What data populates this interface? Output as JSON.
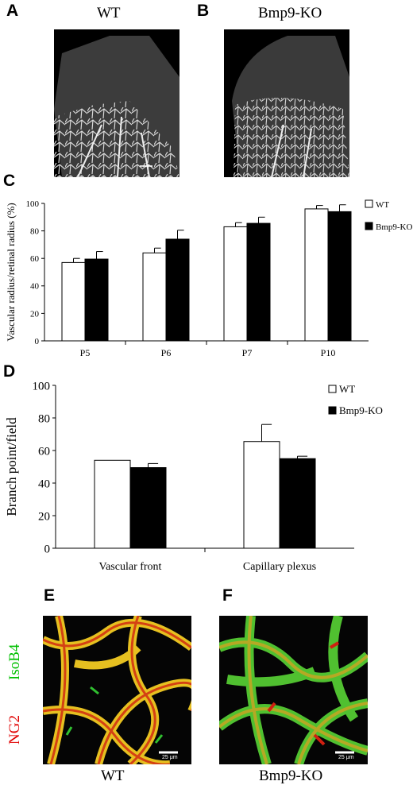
{
  "panels": {
    "A": {
      "label": "A",
      "caption": "WT"
    },
    "B": {
      "label": "B",
      "caption": "Bmp9-KO"
    },
    "C": {
      "label": "C"
    },
    "D": {
      "label": "D"
    },
    "E": {
      "label": "E",
      "caption": "WT",
      "scale_bar": "25 μm"
    },
    "F": {
      "label": "F",
      "caption": "Bmp9-KO",
      "scale_bar": "25 μm"
    }
  },
  "stain_labels": {
    "green": "IsoB4",
    "red": "NG2"
  },
  "colors": {
    "wt": "#ffffff",
    "ko": "#000000",
    "green": "#00c000",
    "red": "#e00000"
  },
  "chart_data": [
    {
      "type": "bar",
      "title": "",
      "xlabel": "",
      "ylabel": "Vascular radius/retinal radius (%)",
      "ylim": [
        0,
        100
      ],
      "yticks": [
        0,
        20,
        40,
        60,
        80,
        100
      ],
      "categories": [
        "P5",
        "P6",
        "P7",
        "P10"
      ],
      "legend_position": "top-right",
      "series": [
        {
          "name": "WT",
          "values": [
            57,
            64,
            83,
            96
          ],
          "errors": [
            3,
            3.5,
            3,
            2.5
          ]
        },
        {
          "name": "Bmp9-KO",
          "values": [
            59.5,
            74,
            85.5,
            94
          ],
          "errors": [
            5.5,
            6.5,
            4.5,
            5
          ]
        }
      ]
    },
    {
      "type": "bar",
      "title": "",
      "xlabel": "",
      "ylabel": "Branch point/field",
      "ylim": [
        0,
        100
      ],
      "yticks": [
        0,
        20,
        40,
        60,
        80,
        100
      ],
      "categories": [
        "Vascular front",
        "Capillary plexus"
      ],
      "legend_position": "top-right",
      "series": [
        {
          "name": "WT",
          "values": [
            54,
            65.5
          ],
          "errors": [
            0,
            10.5
          ]
        },
        {
          "name": "Bmp9-KO",
          "values": [
            49.5,
            55
          ],
          "errors": [
            2.5,
            1.5
          ]
        }
      ]
    }
  ]
}
